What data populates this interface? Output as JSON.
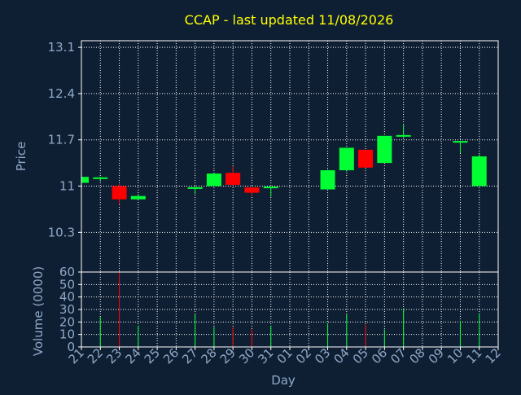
{
  "chart_data": {
    "type": "candlestick",
    "title": "CCAP - last updated 11/08/2026",
    "xlabel": "Day",
    "ylabel_price": "Price",
    "ylabel_volume": "Volume (0000)",
    "x_tick_labels": [
      "21",
      "22",
      "23",
      "24",
      "25",
      "26",
      "27",
      "28",
      "29",
      "30",
      "31",
      "01",
      "02",
      "03",
      "04",
      "05",
      "06",
      "07",
      "08",
      "09",
      "10",
      "11",
      "12"
    ],
    "price_ticks": [
      "13.1",
      "12.4",
      "11.7",
      "11",
      "10.3"
    ],
    "price_tick_values": [
      13.1,
      12.4,
      11.7,
      11.0,
      10.3
    ],
    "price_ylim": [
      9.7,
      13.2
    ],
    "volume_ticks": [
      "60",
      "50",
      "40",
      "30",
      "20",
      "10",
      "0"
    ],
    "volume_tick_values": [
      60,
      50,
      40,
      30,
      20,
      10,
      0
    ],
    "volume_ylim": [
      0,
      60
    ],
    "grid": true,
    "colors": {
      "background": "#0f1f33",
      "axis": "#ffffff",
      "grid": "#ffffff",
      "tick_label": "#8fa8c8",
      "title": "#ffff00",
      "up": "#00ff33",
      "down": "#ff0000"
    },
    "candles": [
      {
        "day": "21",
        "open": 11.05,
        "high": 11.15,
        "low": 11.02,
        "close": 11.14,
        "volume": 0
      },
      {
        "day": "22",
        "open": 11.1,
        "high": 11.14,
        "low": 11.07,
        "close": 11.12,
        "volume": 24
      },
      {
        "day": "23",
        "open": 11.0,
        "high": 11.03,
        "low": 10.72,
        "close": 10.8,
        "volume": 60
      },
      {
        "day": "24",
        "open": 10.8,
        "high": 10.88,
        "low": 10.8,
        "close": 10.85,
        "volume": 17
      },
      {
        "day": "27",
        "open": 10.95,
        "high": 10.99,
        "low": 10.88,
        "close": 10.97,
        "volume": 26
      },
      {
        "day": "28",
        "open": 11.0,
        "high": 11.2,
        "low": 11.0,
        "close": 11.19,
        "volume": 16
      },
      {
        "day": "29",
        "open": 11.2,
        "high": 11.3,
        "low": 11.0,
        "close": 11.02,
        "volume": 16
      },
      {
        "day": "30",
        "open": 10.98,
        "high": 10.98,
        "low": 10.85,
        "close": 10.9,
        "volume": 14
      },
      {
        "day": "31",
        "open": 10.97,
        "high": 10.99,
        "low": 10.84,
        "close": 10.98,
        "volume": 17
      },
      {
        "day": "03",
        "open": 10.95,
        "high": 11.25,
        "low": 10.95,
        "close": 11.24,
        "volume": 19
      },
      {
        "day": "04",
        "open": 11.24,
        "high": 11.58,
        "low": 11.22,
        "close": 11.58,
        "volume": 26
      },
      {
        "day": "05",
        "open": 11.55,
        "high": 11.55,
        "low": 11.28,
        "close": 11.28,
        "volume": 18
      },
      {
        "day": "06",
        "open": 11.35,
        "high": 11.76,
        "low": 11.35,
        "close": 11.76,
        "volume": 14
      },
      {
        "day": "07",
        "open": 11.75,
        "high": 11.94,
        "low": 11.73,
        "close": 11.76,
        "volume": 31
      },
      {
        "day": "10",
        "open": 11.65,
        "high": 11.68,
        "low": 11.5,
        "close": 11.67,
        "volume": 21
      },
      {
        "day": "11",
        "open": 11.0,
        "high": 11.48,
        "low": 11.0,
        "close": 11.45,
        "volume": 27
      }
    ]
  }
}
